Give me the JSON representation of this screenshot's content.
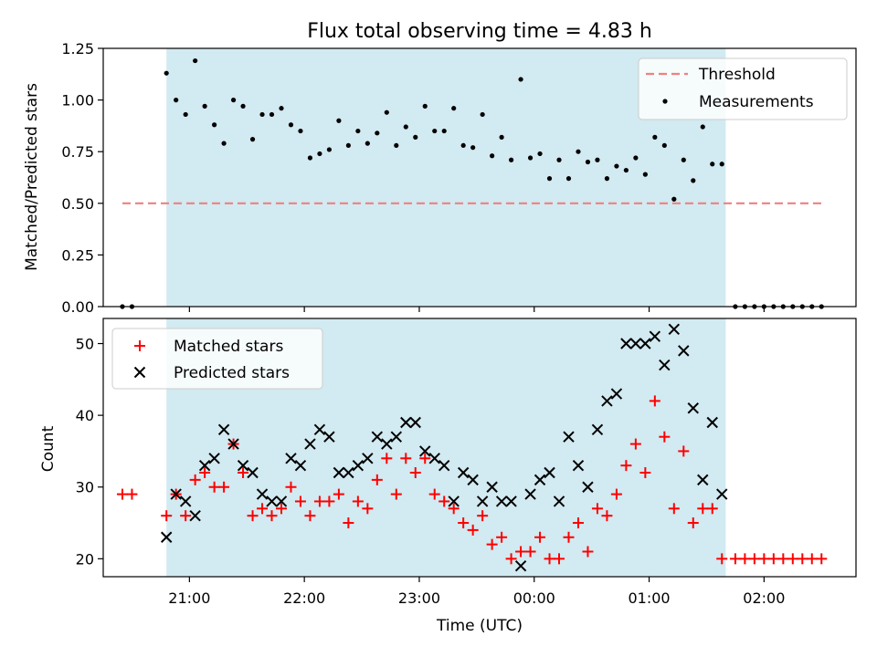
{
  "chart_data": [
    {
      "type": "scatter",
      "title": "Flux total observing time = 4.83 h",
      "ylabel": "Matched/Predicted stars",
      "ylim": [
        0,
        1.25
      ],
      "yticks": [
        "0.00",
        "0.25",
        "0.50",
        "0.75",
        "1.00",
        "1.25"
      ],
      "legend_position": "top-right",
      "observing_window": [
        "20:48",
        "01:40"
      ],
      "observing_window_color": "#add8e6",
      "threshold": {
        "name": "Threshold",
        "value": 0.5,
        "x_range": [
          "20:25",
          "02:30"
        ],
        "color": "#f08080",
        "style": "dashed"
      },
      "series": [
        {
          "name": "Measurements",
          "color": "#000000",
          "x": [
            "20:25",
            "20:30",
            "20:48",
            "20:53",
            "20:58",
            "21:03",
            "21:08",
            "21:13",
            "21:18",
            "21:23",
            "21:28",
            "21:33",
            "21:38",
            "21:43",
            "21:48",
            "21:53",
            "21:58",
            "22:03",
            "22:08",
            "22:13",
            "22:18",
            "22:23",
            "22:28",
            "22:33",
            "22:38",
            "22:43",
            "22:48",
            "22:53",
            "22:58",
            "23:03",
            "23:08",
            "23:13",
            "23:18",
            "23:23",
            "23:28",
            "23:33",
            "23:38",
            "23:43",
            "23:48",
            "23:53",
            "23:58",
            "00:03",
            "00:08",
            "00:13",
            "00:18",
            "00:23",
            "00:28",
            "00:33",
            "00:38",
            "00:43",
            "00:48",
            "00:53",
            "00:58",
            "01:03",
            "01:08",
            "01:13",
            "01:18",
            "01:23",
            "01:28",
            "01:33",
            "01:38",
            "01:45",
            "01:50",
            "01:55",
            "02:00",
            "02:05",
            "02:10",
            "02:15",
            "02:20",
            "02:25",
            "02:30"
          ],
          "y": [
            0.0,
            0.0,
            1.13,
            1.0,
            0.93,
            1.19,
            0.97,
            0.88,
            0.79,
            1.0,
            0.97,
            0.81,
            0.93,
            0.93,
            0.96,
            0.88,
            0.85,
            0.72,
            0.74,
            0.76,
            0.9,
            0.78,
            0.85,
            0.79,
            0.84,
            0.94,
            0.78,
            0.87,
            0.82,
            0.97,
            0.85,
            0.85,
            0.96,
            0.78,
            0.77,
            0.93,
            0.73,
            0.82,
            0.71,
            1.1,
            0.72,
            0.74,
            0.62,
            0.71,
            0.62,
            0.75,
            0.7,
            0.71,
            0.62,
            0.68,
            0.66,
            0.72,
            0.64,
            0.82,
            0.78,
            0.52,
            0.71,
            0.61,
            0.87,
            0.69,
            0.69,
            0.0,
            0.0,
            0.0,
            0.0,
            0.0,
            0.0,
            0.0,
            0.0,
            0.0,
            0.0
          ]
        }
      ]
    },
    {
      "type": "scatter",
      "xlabel": "Time (UTC)",
      "ylabel": "Count",
      "ylim": [
        17.5,
        53.5
      ],
      "yticks": [
        "20",
        "30",
        "40",
        "50"
      ],
      "xticks": [
        "21:00",
        "22:00",
        "23:00",
        "00:00",
        "01:00",
        "02:00"
      ],
      "xlim": [
        "20:15",
        "02:48"
      ],
      "legend_position": "top-left",
      "series": [
        {
          "name": "Matched stars",
          "color": "#ff0000",
          "marker": "+",
          "x": [
            "20:25",
            "20:30",
            "20:48",
            "20:53",
            "20:58",
            "21:03",
            "21:08",
            "21:13",
            "21:18",
            "21:23",
            "21:28",
            "21:33",
            "21:38",
            "21:43",
            "21:48",
            "21:53",
            "21:58",
            "22:03",
            "22:08",
            "22:13",
            "22:18",
            "22:23",
            "22:28",
            "22:33",
            "22:38",
            "22:43",
            "22:48",
            "22:53",
            "22:58",
            "23:03",
            "23:08",
            "23:13",
            "23:18",
            "23:23",
            "23:28",
            "23:33",
            "23:38",
            "23:43",
            "23:48",
            "23:53",
            "23:58",
            "00:03",
            "00:08",
            "00:13",
            "00:18",
            "00:23",
            "00:28",
            "00:33",
            "00:38",
            "00:43",
            "00:48",
            "00:53",
            "00:58",
            "01:03",
            "01:08",
            "01:13",
            "01:18",
            "01:23",
            "01:28",
            "01:33",
            "01:38",
            "01:45",
            "01:50",
            "01:55",
            "02:00",
            "02:05",
            "02:10",
            "02:15",
            "02:20",
            "02:25",
            "02:30"
          ],
          "y": [
            29,
            29,
            26,
            29,
            26,
            31,
            32,
            30,
            30,
            36,
            32,
            26,
            27,
            26,
            27,
            30,
            28,
            26,
            28,
            28,
            29,
            25,
            28,
            27,
            31,
            34,
            29,
            34,
            32,
            34,
            29,
            28,
            27,
            25,
            24,
            26,
            22,
            23,
            20,
            21,
            21,
            23,
            20,
            20,
            23,
            25,
            21,
            27,
            26,
            29,
            33,
            36,
            32,
            42,
            37,
            27,
            35,
            25,
            27,
            27,
            20,
            20,
            20,
            20,
            20,
            20,
            20,
            20,
            20,
            20,
            20
          ]
        },
        {
          "name": "Predicted stars",
          "color": "#000000",
          "marker": "x",
          "x": [
            "20:48",
            "20:53",
            "20:58",
            "21:03",
            "21:08",
            "21:13",
            "21:18",
            "21:23",
            "21:28",
            "21:33",
            "21:38",
            "21:43",
            "21:48",
            "21:53",
            "21:58",
            "22:03",
            "22:08",
            "22:13",
            "22:18",
            "22:23",
            "22:28",
            "22:33",
            "22:38",
            "22:43",
            "22:48",
            "22:53",
            "22:58",
            "23:03",
            "23:08",
            "23:13",
            "23:18",
            "23:23",
            "23:28",
            "23:33",
            "23:38",
            "23:43",
            "23:48",
            "23:53",
            "23:58",
            "00:03",
            "00:08",
            "00:13",
            "00:18",
            "00:23",
            "00:28",
            "00:33",
            "00:38",
            "00:43",
            "00:48",
            "00:53",
            "00:58",
            "01:03",
            "01:08",
            "01:13",
            "01:18",
            "01:23",
            "01:28",
            "01:33",
            "01:38"
          ],
          "y": [
            23,
            29,
            28,
            26,
            33,
            34,
            38,
            36,
            33,
            32,
            29,
            28,
            28,
            34,
            33,
            36,
            38,
            37,
            32,
            32,
            33,
            34,
            37,
            36,
            37,
            39,
            39,
            35,
            34,
            33,
            28,
            32,
            31,
            28,
            30,
            28,
            28,
            19,
            29,
            31,
            32,
            28,
            37,
            33,
            30,
            38,
            42,
            43,
            50,
            50,
            50,
            51,
            47,
            52,
            49,
            41,
            31,
            39,
            29
          ]
        }
      ]
    }
  ]
}
